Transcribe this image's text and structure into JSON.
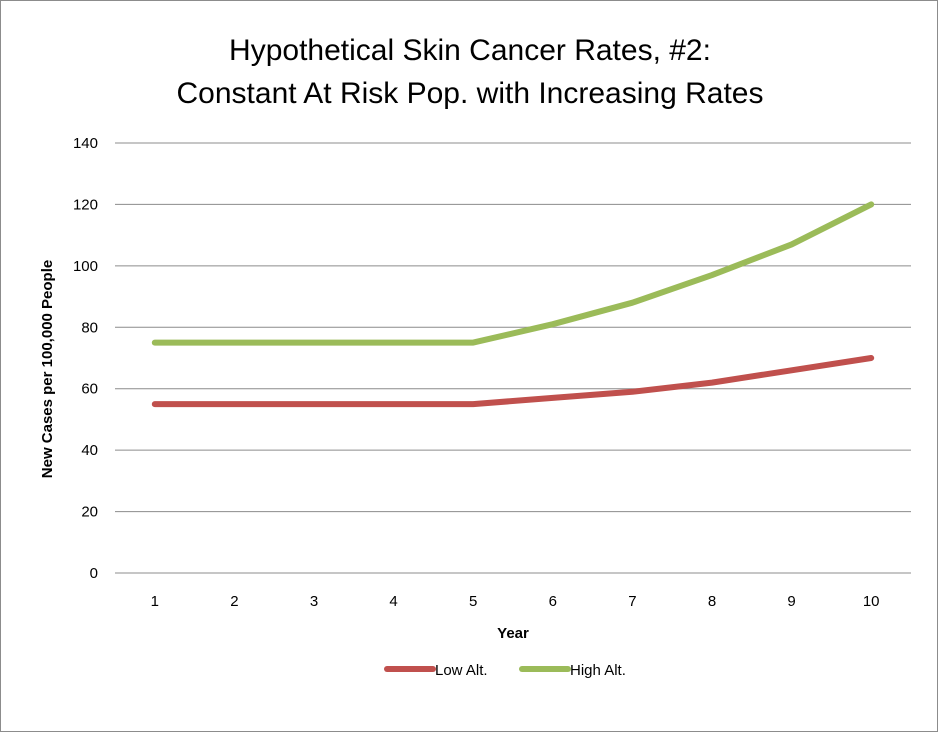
{
  "chart_data": {
    "type": "line",
    "title_lines": [
      "Hypothetical Skin Cancer Rates, #2:",
      "Constant At Risk Pop. with Increasing Rates"
    ],
    "xlabel": "Year",
    "ylabel": "New  Cases per 100,000 People",
    "categories": [
      "1",
      "2",
      "3",
      "4",
      "5",
      "6",
      "7",
      "8",
      "9",
      "10"
    ],
    "ylim": [
      0,
      140
    ],
    "yticks": [
      "0",
      "20",
      "40",
      "60",
      "80",
      "100",
      "120",
      "140"
    ],
    "grid": true,
    "legend_position": "bottom",
    "series": [
      {
        "name": "Low Alt.",
        "color": "#c0504d",
        "values": [
          55,
          55,
          55,
          55,
          55,
          57,
          59,
          62,
          66,
          70
        ]
      },
      {
        "name": "High Alt.",
        "color": "#9bbb59",
        "values": [
          75,
          75,
          75,
          75,
          75,
          81,
          88,
          97,
          107,
          120
        ]
      }
    ]
  }
}
